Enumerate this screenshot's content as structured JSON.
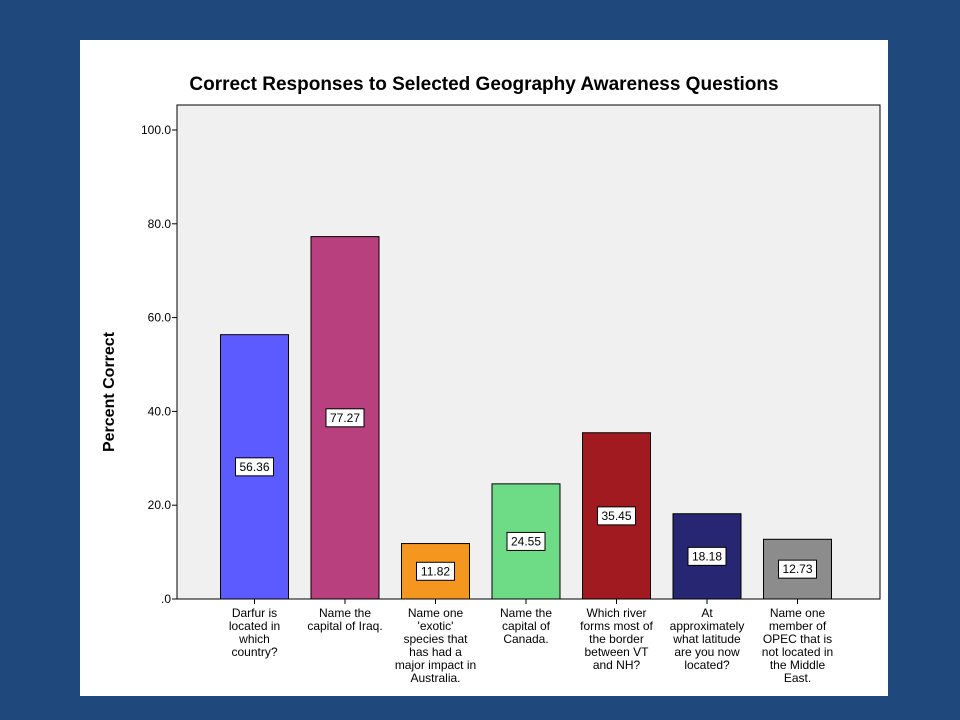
{
  "chart_data": {
    "type": "bar",
    "title": "Correct Responses to Selected Geography Awareness Questions",
    "ylabel": "Percent Correct",
    "xlabel": "",
    "ylim": [
      0,
      100
    ],
    "yticks": [
      ".0",
      "20.0",
      "40.0",
      "60.0",
      "80.0",
      "100.0"
    ],
    "ytick_values": [
      0,
      20,
      40,
      60,
      80,
      100
    ],
    "grid": false,
    "plot_background": "#f0f0f0",
    "categories": [
      [
        "Darfur is",
        "located in",
        "which",
        "country?"
      ],
      [
        "Name the",
        "capital of Iraq."
      ],
      [
        "Name one",
        "'exotic'",
        "species that",
        "has had a",
        "major impact in",
        "Australia."
      ],
      [
        "Name the",
        "capital of",
        "Canada."
      ],
      [
        "Which river",
        "forms most of",
        "the border",
        "between VT",
        "and NH?"
      ],
      [
        "At",
        "approximately",
        "what latitude",
        "are you now",
        "located?"
      ],
      [
        "Name one",
        "member of",
        "OPEC that is",
        "not located in",
        "the Middle",
        "East."
      ]
    ],
    "values": [
      56.36,
      77.27,
      11.82,
      24.55,
      35.45,
      18.18,
      12.73
    ],
    "value_labels": [
      "56.36",
      "77.27",
      "11.82",
      "24.55",
      "35.45",
      "18.18",
      "12.73"
    ],
    "colors": [
      "#5b5bff",
      "#b8407e",
      "#f5961e",
      "#6edb86",
      "#a01a1f",
      "#262673",
      "#8c8c8c"
    ]
  }
}
